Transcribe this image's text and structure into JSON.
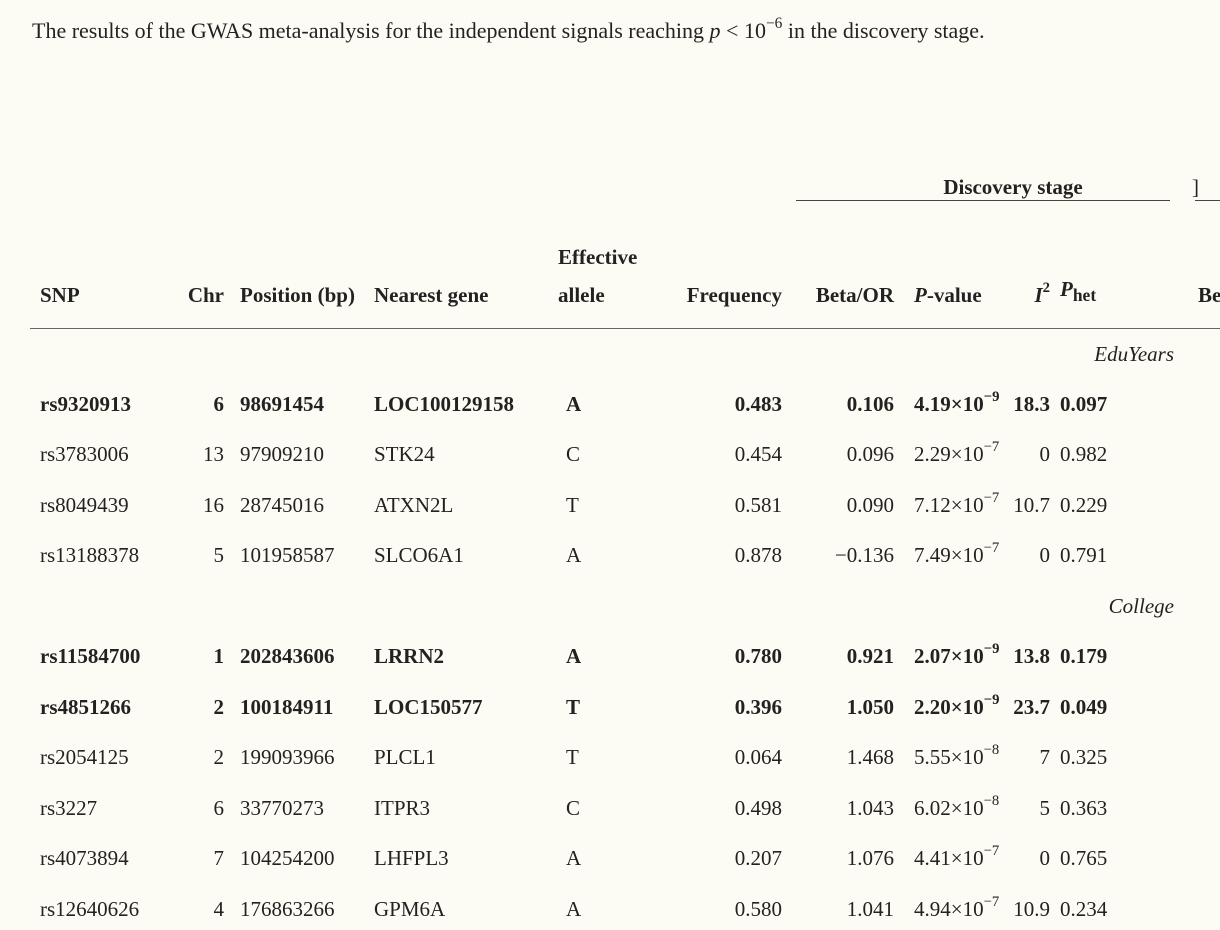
{
  "caption": {
    "text_before": "The results of the GWAS meta-analysis for the independent signals reaching ",
    "p": "p",
    "lt": " < 10",
    "exp": "−6",
    "text_after": " in the discovery stage."
  },
  "spanning": {
    "discovery": "Discovery stage",
    "next": "]"
  },
  "headers": {
    "snp": "SNP",
    "chr": "Chr",
    "position": "Position (bp)",
    "gene": "Nearest gene",
    "allele": "Effective allele",
    "frequency": "Frequency",
    "beta": "Beta/OR",
    "pvalue_p": "P",
    "pvalue_rest": "-value",
    "i2": "I",
    "i2_sup": "2",
    "phet": "P",
    "phet_sub": "het",
    "next": "Be"
  },
  "groups": [
    {
      "label": "EduYears",
      "rows": [
        {
          "bold": true,
          "snp": "rs9320913",
          "chr": "6",
          "pos": "98691454",
          "gene": "LOC100129158",
          "allele": "A",
          "freq": "0.483",
          "beta": "0.106",
          "p_mant": "4.19×10",
          "p_exp": "−9",
          "i2": "18.3",
          "phet": "0.097"
        },
        {
          "bold": false,
          "snp": "rs3783006",
          "chr": "13",
          "pos": "97909210",
          "gene": "STK24",
          "allele": "C",
          "freq": "0.454",
          "beta": "0.096",
          "p_mant": "2.29×10",
          "p_exp": "−7",
          "i2": "0",
          "phet": "0.982"
        },
        {
          "bold": false,
          "snp": "rs8049439",
          "chr": "16",
          "pos": "28745016",
          "gene": "ATXN2L",
          "allele": "T",
          "freq": "0.581",
          "beta": "0.090",
          "p_mant": "7.12×10",
          "p_exp": "−7",
          "i2": "10.7",
          "phet": "0.229"
        },
        {
          "bold": false,
          "snp": "rs13188378",
          "chr": "5",
          "pos": "101958587",
          "gene": "SLCO6A1",
          "allele": "A",
          "freq": "0.878",
          "beta": "−0.136",
          "p_mant": "7.49×10",
          "p_exp": "−7",
          "i2": "0",
          "phet": "0.791"
        }
      ]
    },
    {
      "label": "College",
      "rows": [
        {
          "bold": true,
          "snp": "rs11584700",
          "chr": "1",
          "pos": "202843606",
          "gene": "LRRN2",
          "allele": "A",
          "freq": "0.780",
          "beta": "0.921",
          "p_mant": "2.07×10",
          "p_exp": "−9",
          "i2": "13.8",
          "phet": "0.179"
        },
        {
          "bold": true,
          "snp": "rs4851266",
          "chr": "2",
          "pos": "100184911",
          "gene": "LOC150577",
          "allele": "T",
          "freq": "0.396",
          "beta": "1.050",
          "p_mant": "2.20×10",
          "p_exp": "−9",
          "i2": "23.7",
          "phet": "0.049"
        },
        {
          "bold": false,
          "snp": "rs2054125",
          "chr": "2",
          "pos": "199093966",
          "gene": "PLCL1",
          "allele": "T",
          "freq": "0.064",
          "beta": "1.468",
          "p_mant": "5.55×10",
          "p_exp": "−8",
          "i2": "7",
          "phet": "0.325"
        },
        {
          "bold": false,
          "snp": "rs3227",
          "chr": "6",
          "pos": "33770273",
          "gene": "ITPR3",
          "allele": "C",
          "freq": "0.498",
          "beta": "1.043",
          "p_mant": "6.02×10",
          "p_exp": "−8",
          "i2": "5",
          "phet": "0.363"
        },
        {
          "bold": false,
          "snp": "rs4073894",
          "chr": "7",
          "pos": "104254200",
          "gene": "LHFPL3",
          "allele": "A",
          "freq": "0.207",
          "beta": "1.076",
          "p_mant": "4.41×10",
          "p_exp": "−7",
          "i2": "0",
          "phet": "0.765"
        },
        {
          "bold": false,
          "snp": "rs12640626",
          "chr": "4",
          "pos": "176863266",
          "gene": "GPM6A",
          "allele": "A",
          "freq": "0.580",
          "beta": "1.041",
          "p_mant": "4.94×10",
          "p_exp": "−7",
          "i2": "10.9",
          "phet": "0.234"
        }
      ]
    }
  ]
}
